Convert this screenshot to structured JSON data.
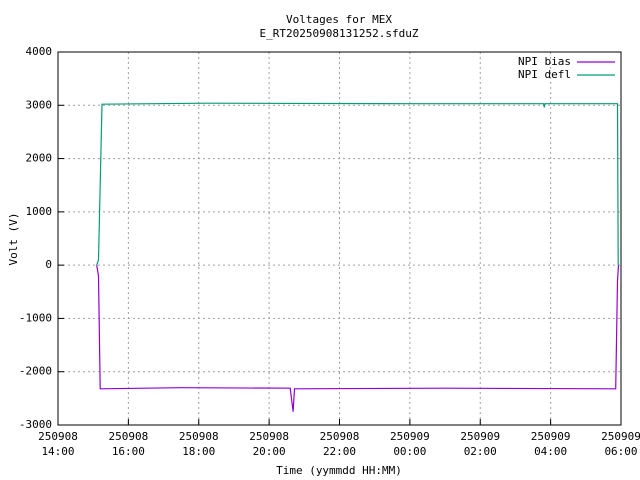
{
  "chart_data": {
    "type": "line",
    "title": "Voltages for MEX",
    "subtitle": "E_RT20250908131252.sfduZ",
    "x_label": "Time (yymmdd HH:MM)",
    "y_label": "Volt (V)",
    "xlim": [
      14,
      30
    ],
    "ylim": [
      -3000,
      4000
    ],
    "xticks": [
      {
        "value": 14,
        "label": "250908\n14:00"
      },
      {
        "value": 16,
        "label": "250908\n16:00"
      },
      {
        "value": 18,
        "label": "250908\n18:00"
      },
      {
        "value": 20,
        "label": "250908\n20:00"
      },
      {
        "value": 22,
        "label": "250908\n22:00"
      },
      {
        "value": 24,
        "label": "250909\n00:00"
      },
      {
        "value": 26,
        "label": "250909\n02:00"
      },
      {
        "value": 28,
        "label": "250909\n04:00"
      },
      {
        "value": 30,
        "label": "250909\n06:00"
      }
    ],
    "yticks": [
      -3000,
      -2000,
      -1000,
      0,
      1000,
      2000,
      3000,
      4000
    ],
    "grid": true,
    "legend": "top-right",
    "series": [
      {
        "name": "NPI bias",
        "color": "#9400d3",
        "x": [
          15.1,
          15.15,
          15.2,
          17.5,
          20.6,
          20.68,
          20.72,
          25,
          29.85,
          29.9,
          29.93
        ],
        "values": [
          0,
          -200,
          -2320,
          -2300,
          -2310,
          -2750,
          -2320,
          -2310,
          -2320,
          -300,
          0
        ]
      },
      {
        "name": "NPI defl",
        "color": "#009e73",
        "x": [
          15.1,
          15.15,
          15.25,
          18.2,
          24,
          27.8,
          27.82,
          27.84,
          29.85,
          29.9,
          29.92
        ],
        "values": [
          0,
          100,
          3020,
          3040,
          3030,
          3030,
          2960,
          3030,
          3030,
          3030,
          0
        ]
      }
    ]
  }
}
